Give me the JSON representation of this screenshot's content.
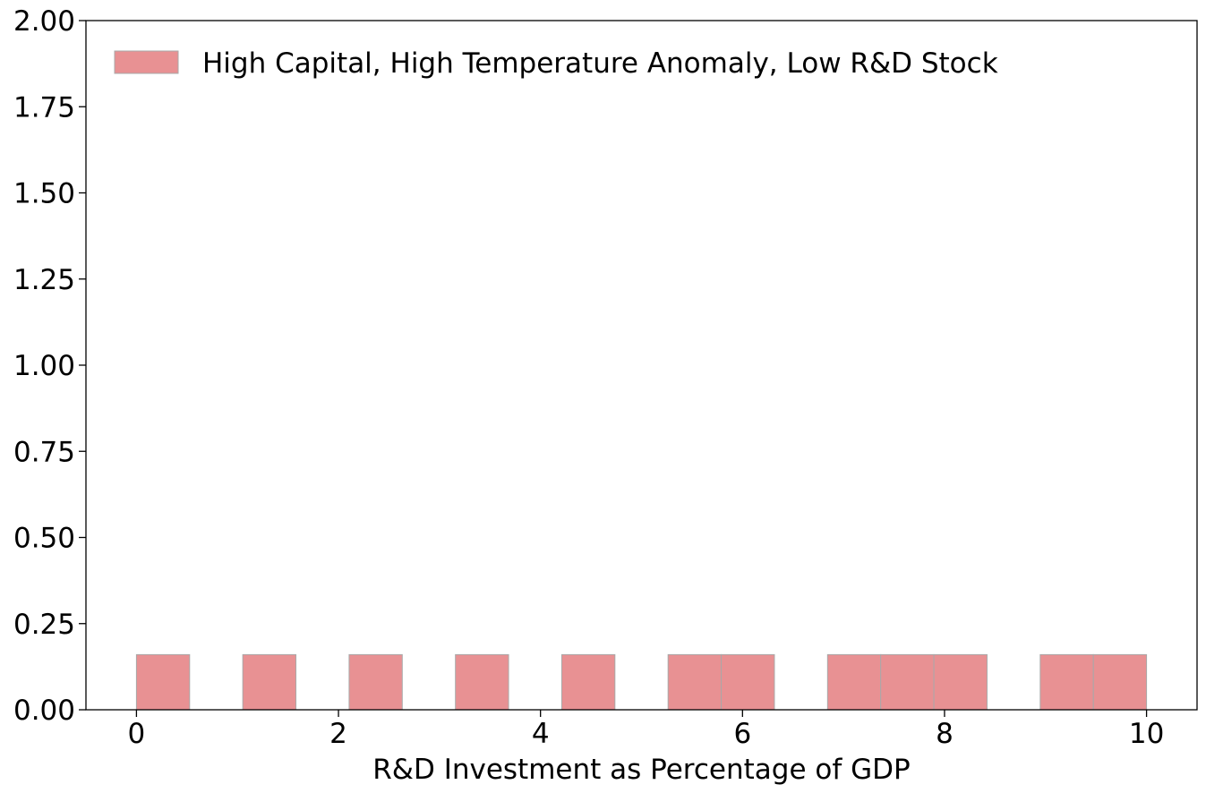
{
  "chart_data": {
    "type": "bar",
    "title": "",
    "xlabel": "R&D Investment as Percentage of GDP",
    "ylabel": "",
    "xlim": [
      -0.5,
      10.5
    ],
    "ylim": [
      0,
      2.0
    ],
    "x_ticks": [
      "0",
      "2",
      "4",
      "6",
      "8",
      "10"
    ],
    "x_tick_values": [
      0,
      2,
      4,
      6,
      8,
      10
    ],
    "y_ticks": [
      "0.00",
      "0.25",
      "0.50",
      "0.75",
      "1.00",
      "1.25",
      "1.50",
      "1.75",
      "2.00"
    ],
    "y_tick_values": [
      0,
      0.25,
      0.5,
      0.75,
      1.0,
      1.25,
      1.5,
      1.75,
      2.0
    ],
    "grid": false,
    "legend_position": "top-left",
    "series": [
      {
        "name": "High Capital, High Temperature Anomaly, Low R&D Stock",
        "color": "#e89193",
        "edge_color": "#a9a9a9",
        "bins": [
          {
            "x0": 0.0,
            "x1": 0.5263,
            "value": 0.16
          },
          {
            "x0": 1.0526,
            "x1": 1.5789,
            "value": 0.16
          },
          {
            "x0": 2.1053,
            "x1": 2.6316,
            "value": 0.16
          },
          {
            "x0": 3.1579,
            "x1": 3.6842,
            "value": 0.16
          },
          {
            "x0": 4.2105,
            "x1": 4.7368,
            "value": 0.16
          },
          {
            "x0": 5.2632,
            "x1": 5.7895,
            "value": 0.16
          },
          {
            "x0": 5.7895,
            "x1": 6.3158,
            "value": 0.16
          },
          {
            "x0": 6.8421,
            "x1": 7.3684,
            "value": 0.16
          },
          {
            "x0": 7.3684,
            "x1": 7.8947,
            "value": 0.16
          },
          {
            "x0": 7.8947,
            "x1": 8.4211,
            "value": 0.16
          },
          {
            "x0": 8.9474,
            "x1": 9.4737,
            "value": 0.16
          },
          {
            "x0": 9.4737,
            "x1": 10.0,
            "value": 0.16
          }
        ]
      }
    ]
  }
}
